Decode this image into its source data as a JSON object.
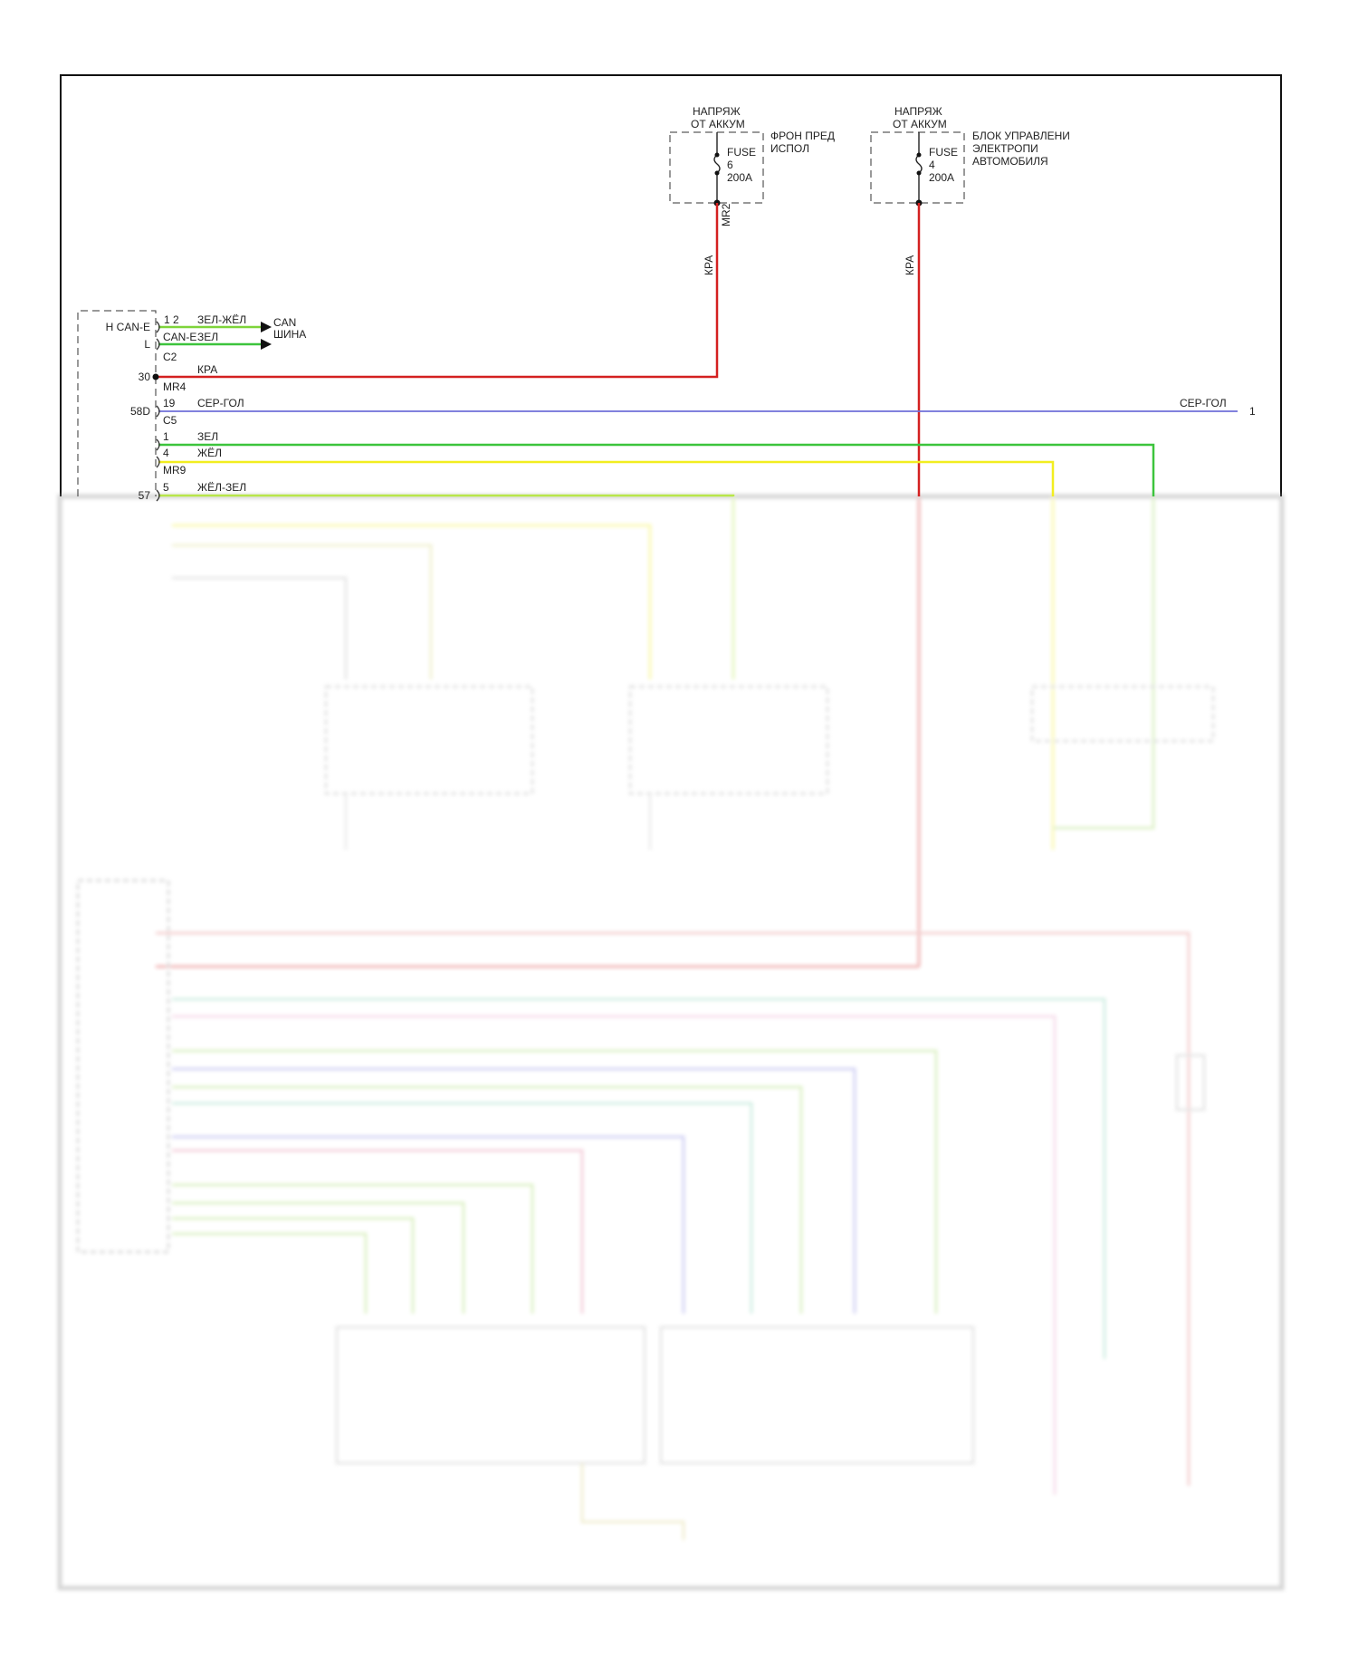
{
  "colors": {
    "red": "#d42020",
    "green": "#3cc43c",
    "yellow": "#f2ee20",
    "yellow_green": "#b8e64a",
    "green_yellow": "#7ed43a",
    "grey_blue": "#6f6fd8",
    "frame": "#111111"
  },
  "fuse_left": {
    "source_line1": "НАПРЯЖ",
    "source_line2": "ОТ АККУМ",
    "box_line1": "ФРОН ПРЕД",
    "box_line2": "ИСПОЛ",
    "fuse_label": "FUSE",
    "fuse_number": "6",
    "fuse_rating": "200A",
    "connector": "MR2",
    "wire_color": "КРА"
  },
  "fuse_right": {
    "source_line1": "НАПРЯЖ",
    "source_line2": "ОТ АККУМ",
    "box_line1": "БЛОК УПРАВЛЕНИ",
    "box_line2": "ЭЛЕКТРОПИ",
    "box_line3": "АВТОМОБИЛЯ",
    "fuse_label": "FUSE",
    "fuse_number": "4",
    "fuse_rating": "200A",
    "wire_color": "КРА"
  },
  "module": {
    "pins": [
      {
        "name": "H CAN-E",
        "pin": "1 2",
        "wire": "ЗЕЛ-ЖЁЛ"
      },
      {
        "name": "L",
        "pin": "CAN-E",
        "wire": "ЗЕЛ"
      },
      {
        "name": "30",
        "pin": "",
        "wire": "КРА"
      },
      {
        "name": "58D",
        "pin": "19",
        "wire": "СЕР-ГОЛ"
      },
      {
        "name": "",
        "pin": "1",
        "wire": "ЗЕЛ"
      },
      {
        "name": "",
        "pin": "4",
        "wire": "ЖЁЛ"
      },
      {
        "name": "57",
        "pin": "5",
        "wire": "ЖЁЛ-ЗЕЛ"
      }
    ],
    "connectors": [
      "C2",
      "MR4",
      "C5",
      "MR9"
    ],
    "can_label_line1": "CAN",
    "can_label_line2": "ШИНА",
    "right_wire_label": "СЕР-ГОЛ",
    "right_ref": "1"
  }
}
